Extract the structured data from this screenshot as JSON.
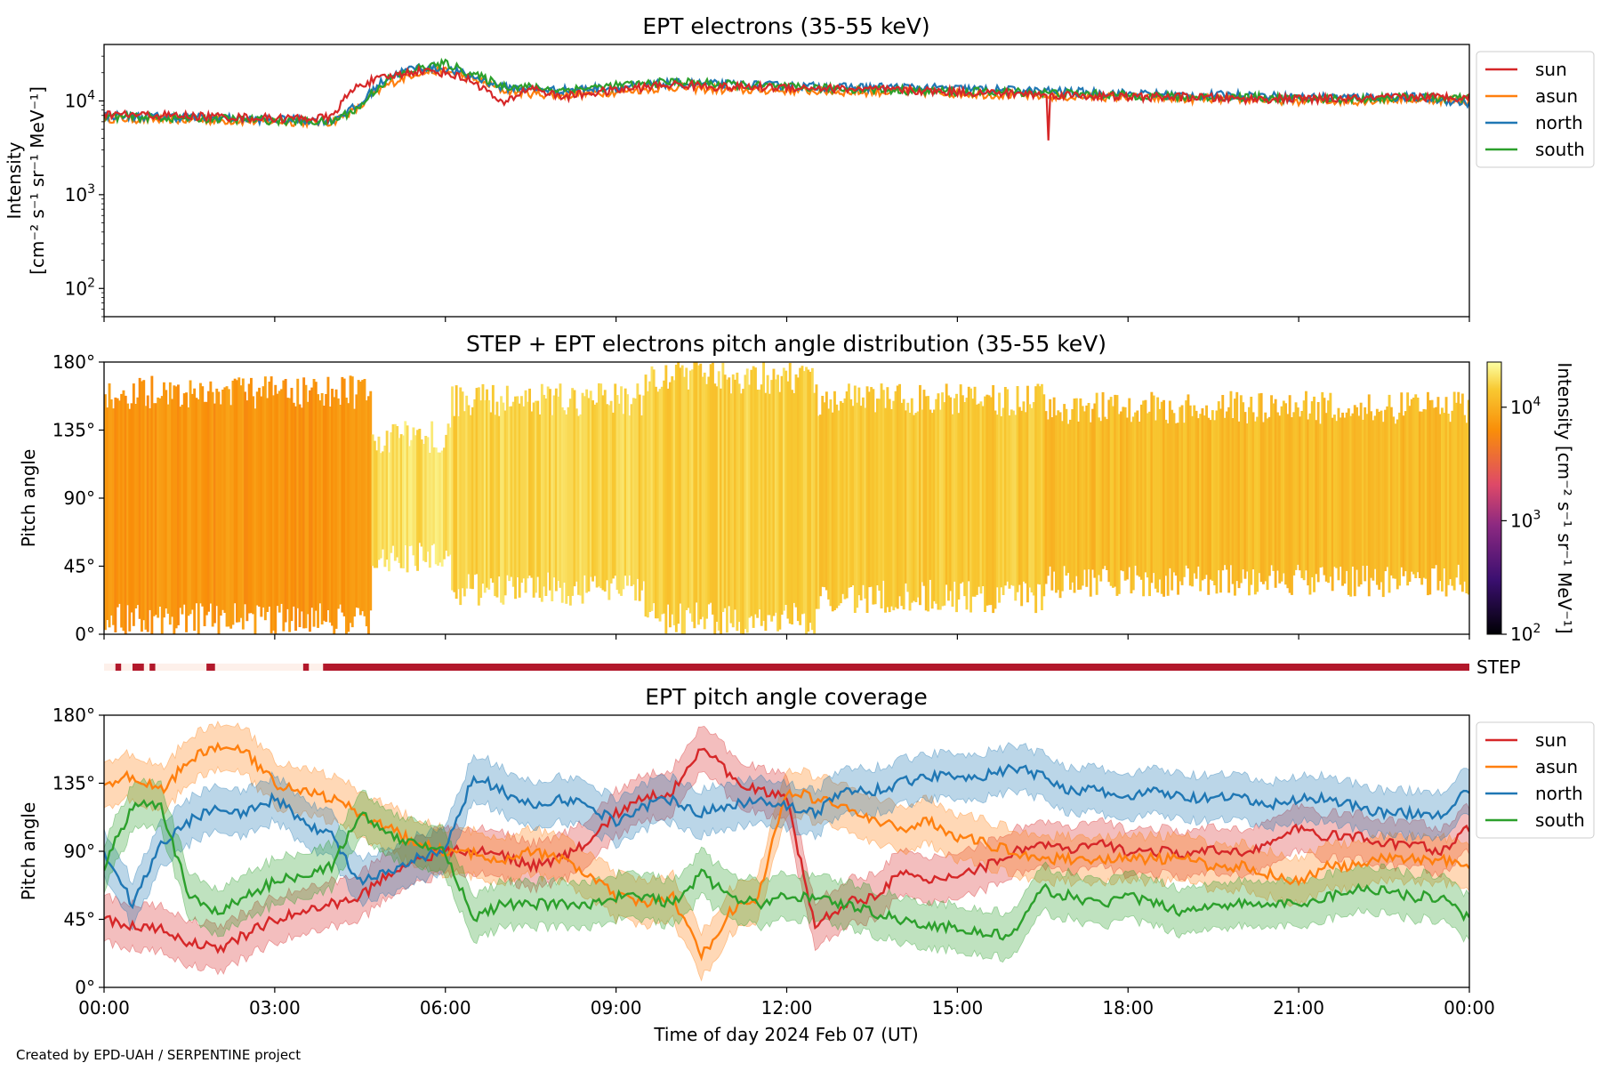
{
  "figure": {
    "credit": "Created by EPD-UAH / SERPENTINE project",
    "xlabel": "Time of day 2024 Feb 07 (UT)",
    "x_ticks": [
      "00:00",
      "03:00",
      "06:00",
      "09:00",
      "12:00",
      "15:00",
      "18:00",
      "21:00",
      "00:00"
    ]
  },
  "colors": {
    "sun": "#d62728",
    "asun": "#ff7f0e",
    "north": "#1f77b4",
    "south": "#2ca02c",
    "step_bar": "#b2182b",
    "step_bar_light": "#fdf0ea"
  },
  "chart_data": [
    {
      "type": "line",
      "title": "EPT electrons (35-55 keV)",
      "ylabel_line1": "Intensity",
      "ylabel_line2": "[cm⁻² s⁻¹ sr⁻¹ MeV⁻¹]",
      "yscale": "log",
      "ylim": [
        50,
        40000
      ],
      "y_ticks": [
        {
          "value": 100,
          "base": "10",
          "exp": "2"
        },
        {
          "value": 1000,
          "base": "10",
          "exp": "3"
        },
        {
          "value": 10000,
          "base": "10",
          "exp": "4"
        }
      ],
      "x_hours": [
        0,
        1,
        2,
        3,
        4,
        4.5,
        5,
        5.5,
        6,
        6.5,
        7,
        7.5,
        8,
        9,
        10,
        11,
        12,
        13,
        14,
        15,
        16,
        17,
        18,
        19,
        20,
        21,
        22,
        23,
        24
      ],
      "legend": [
        "sun",
        "asun",
        "north",
        "south"
      ],
      "series": [
        {
          "name": "sun",
          "values": [
            7200,
            7000,
            6800,
            6500,
            6600,
            15000,
            18000,
            21000,
            20000,
            16000,
            9000,
            14000,
            11000,
            13000,
            15000,
            14000,
            14000,
            13500,
            13000,
            12500,
            12000,
            11500,
            11000,
            11000,
            10500,
            10500,
            10500,
            11000,
            11000
          ]
        },
        {
          "name": "asun",
          "values": [
            6500,
            6300,
            6200,
            6000,
            5900,
            8500,
            15000,
            20000,
            21000,
            17000,
            13000,
            12000,
            11500,
            12500,
            14000,
            13000,
            13000,
            12500,
            12500,
            12000,
            11500,
            11000,
            11000,
            10500,
            10500,
            10000,
            10000,
            10500,
            10000
          ]
        },
        {
          "name": "north",
          "values": [
            7000,
            6800,
            6600,
            6300,
            6200,
            9000,
            18000,
            23000,
            22000,
            18000,
            14000,
            13500,
            13000,
            14000,
            15500,
            15000,
            14500,
            14000,
            14000,
            13500,
            13000,
            12500,
            12000,
            11500,
            11500,
            11000,
            11000,
            11000,
            9500
          ]
        },
        {
          "name": "south",
          "values": [
            6800,
            6600,
            6500,
            6200,
            6000,
            8500,
            17000,
            22000,
            25000,
            19000,
            14500,
            14000,
            13000,
            14500,
            16000,
            15000,
            14000,
            13500,
            13000,
            12500,
            12500,
            12000,
            11500,
            11000,
            11000,
            10500,
            10500,
            11000,
            10500
          ]
        }
      ],
      "events": [
        {
          "name": "sun",
          "x": 16.6,
          "value": 3800
        }
      ]
    },
    {
      "type": "heatmap",
      "title": "STEP + EPT electrons pitch angle distribution (35-55 keV)",
      "ylabel": "Pitch angle",
      "ylim": [
        0,
        180
      ],
      "y_ticks": [
        "0°",
        "45°",
        "90°",
        "135°",
        "180°"
      ],
      "colorbar_label": "Intensity [cm⁻² s⁻¹ sr⁻¹ MeV⁻¹]",
      "colorbar_ticks": [
        {
          "value": 100,
          "base": "10",
          "exp": "2"
        },
        {
          "value": 1000,
          "base": "10",
          "exp": "3"
        },
        {
          "value": 10000,
          "base": "10",
          "exp": "4"
        }
      ],
      "clim": [
        100,
        25000
      ],
      "colormap": "inferno",
      "bands": [
        {
          "x0": 0,
          "x1": 4.7,
          "lo": 10,
          "hi": 160,
          "intensity": 7000
        },
        {
          "x0": 4.7,
          "x1": 6.1,
          "lo": 50,
          "hi": 130,
          "intensity": 18000
        },
        {
          "x0": 6.1,
          "x1": 9.5,
          "lo": 30,
          "hi": 155,
          "intensity": 16000
        },
        {
          "x0": 9.5,
          "x1": 12.5,
          "lo": 10,
          "hi": 170,
          "intensity": 15000
        },
        {
          "x0": 12.5,
          "x1": 16.5,
          "lo": 25,
          "hi": 155,
          "intensity": 14000
        },
        {
          "x0": 16.5,
          "x1": 24,
          "lo": 35,
          "hi": 150,
          "intensity": 12000
        }
      ],
      "step_label": "STEP",
      "step_coverage": [
        [
          0.2,
          0.3
        ],
        [
          0.5,
          0.7
        ],
        [
          0.8,
          0.9
        ],
        [
          1.8,
          1.95
        ],
        [
          3.5,
          3.6
        ],
        [
          3.85,
          24
        ]
      ]
    },
    {
      "type": "line",
      "title": "EPT pitch angle coverage",
      "ylabel": "Pitch angle",
      "ylim": [
        0,
        180
      ],
      "y_ticks": [
        "0°",
        "45°",
        "90°",
        "135°",
        "180°"
      ],
      "x_hours": [
        0,
        0.5,
        1,
        1.5,
        2,
        2.5,
        3,
        3.5,
        4,
        4.5,
        5,
        5.5,
        6,
        6.5,
        7,
        7.5,
        8,
        8.5,
        9,
        9.5,
        10,
        10.5,
        11,
        11.5,
        12,
        12.5,
        13,
        13.5,
        14,
        14.5,
        15,
        15.5,
        16,
        16.5,
        17,
        17.5,
        18,
        18.5,
        19,
        19.5,
        20,
        20.5,
        21,
        21.5,
        22,
        22.5,
        23,
        23.5,
        24
      ],
      "legend": [
        "sun",
        "asun",
        "north",
        "south"
      ],
      "band_halfwidth": 15,
      "series": [
        {
          "name": "sun",
          "values": [
            45,
            40,
            38,
            30,
            25,
            35,
            45,
            50,
            55,
            60,
            75,
            85,
            90,
            90,
            88,
            80,
            85,
            95,
            115,
            125,
            130,
            160,
            140,
            130,
            125,
            40,
            55,
            60,
            75,
            70,
            75,
            80,
            90,
            95,
            90,
            95,
            90,
            90,
            88,
            90,
            90,
            95,
            105,
            100,
            100,
            95,
            95,
            90,
            105
          ]
        },
        {
          "name": "asun",
          "values": [
            135,
            140,
            130,
            150,
            160,
            155,
            135,
            130,
            125,
            115,
            105,
            95,
            90,
            88,
            85,
            90,
            85,
            75,
            60,
            55,
            60,
            20,
            50,
            60,
            130,
            125,
            120,
            110,
            105,
            110,
            100,
            95,
            90,
            85,
            85,
            85,
            85,
            85,
            85,
            80,
            80,
            75,
            70,
            80,
            80,
            85,
            85,
            85,
            80
          ]
        },
        {
          "name": "north",
          "values": [
            90,
            55,
            95,
            110,
            120,
            115,
            125,
            110,
            100,
            70,
            75,
            85,
            90,
            140,
            130,
            120,
            125,
            120,
            110,
            120,
            125,
            115,
            120,
            125,
            120,
            115,
            130,
            130,
            135,
            140,
            140,
            140,
            145,
            140,
            130,
            130,
            125,
            130,
            125,
            125,
            125,
            120,
            125,
            125,
            120,
            115,
            115,
            115,
            130
          ]
        },
        {
          "name": "south",
          "values": [
            80,
            120,
            120,
            60,
            50,
            60,
            70,
            75,
            80,
            115,
            100,
            95,
            90,
            45,
            55,
            55,
            55,
            55,
            60,
            60,
            55,
            75,
            60,
            55,
            60,
            60,
            55,
            50,
            45,
            40,
            40,
            35,
            35,
            65,
            60,
            55,
            60,
            55,
            50,
            55,
            55,
            55,
            55,
            60,
            65,
            65,
            60,
            60,
            45
          ]
        }
      ]
    }
  ]
}
